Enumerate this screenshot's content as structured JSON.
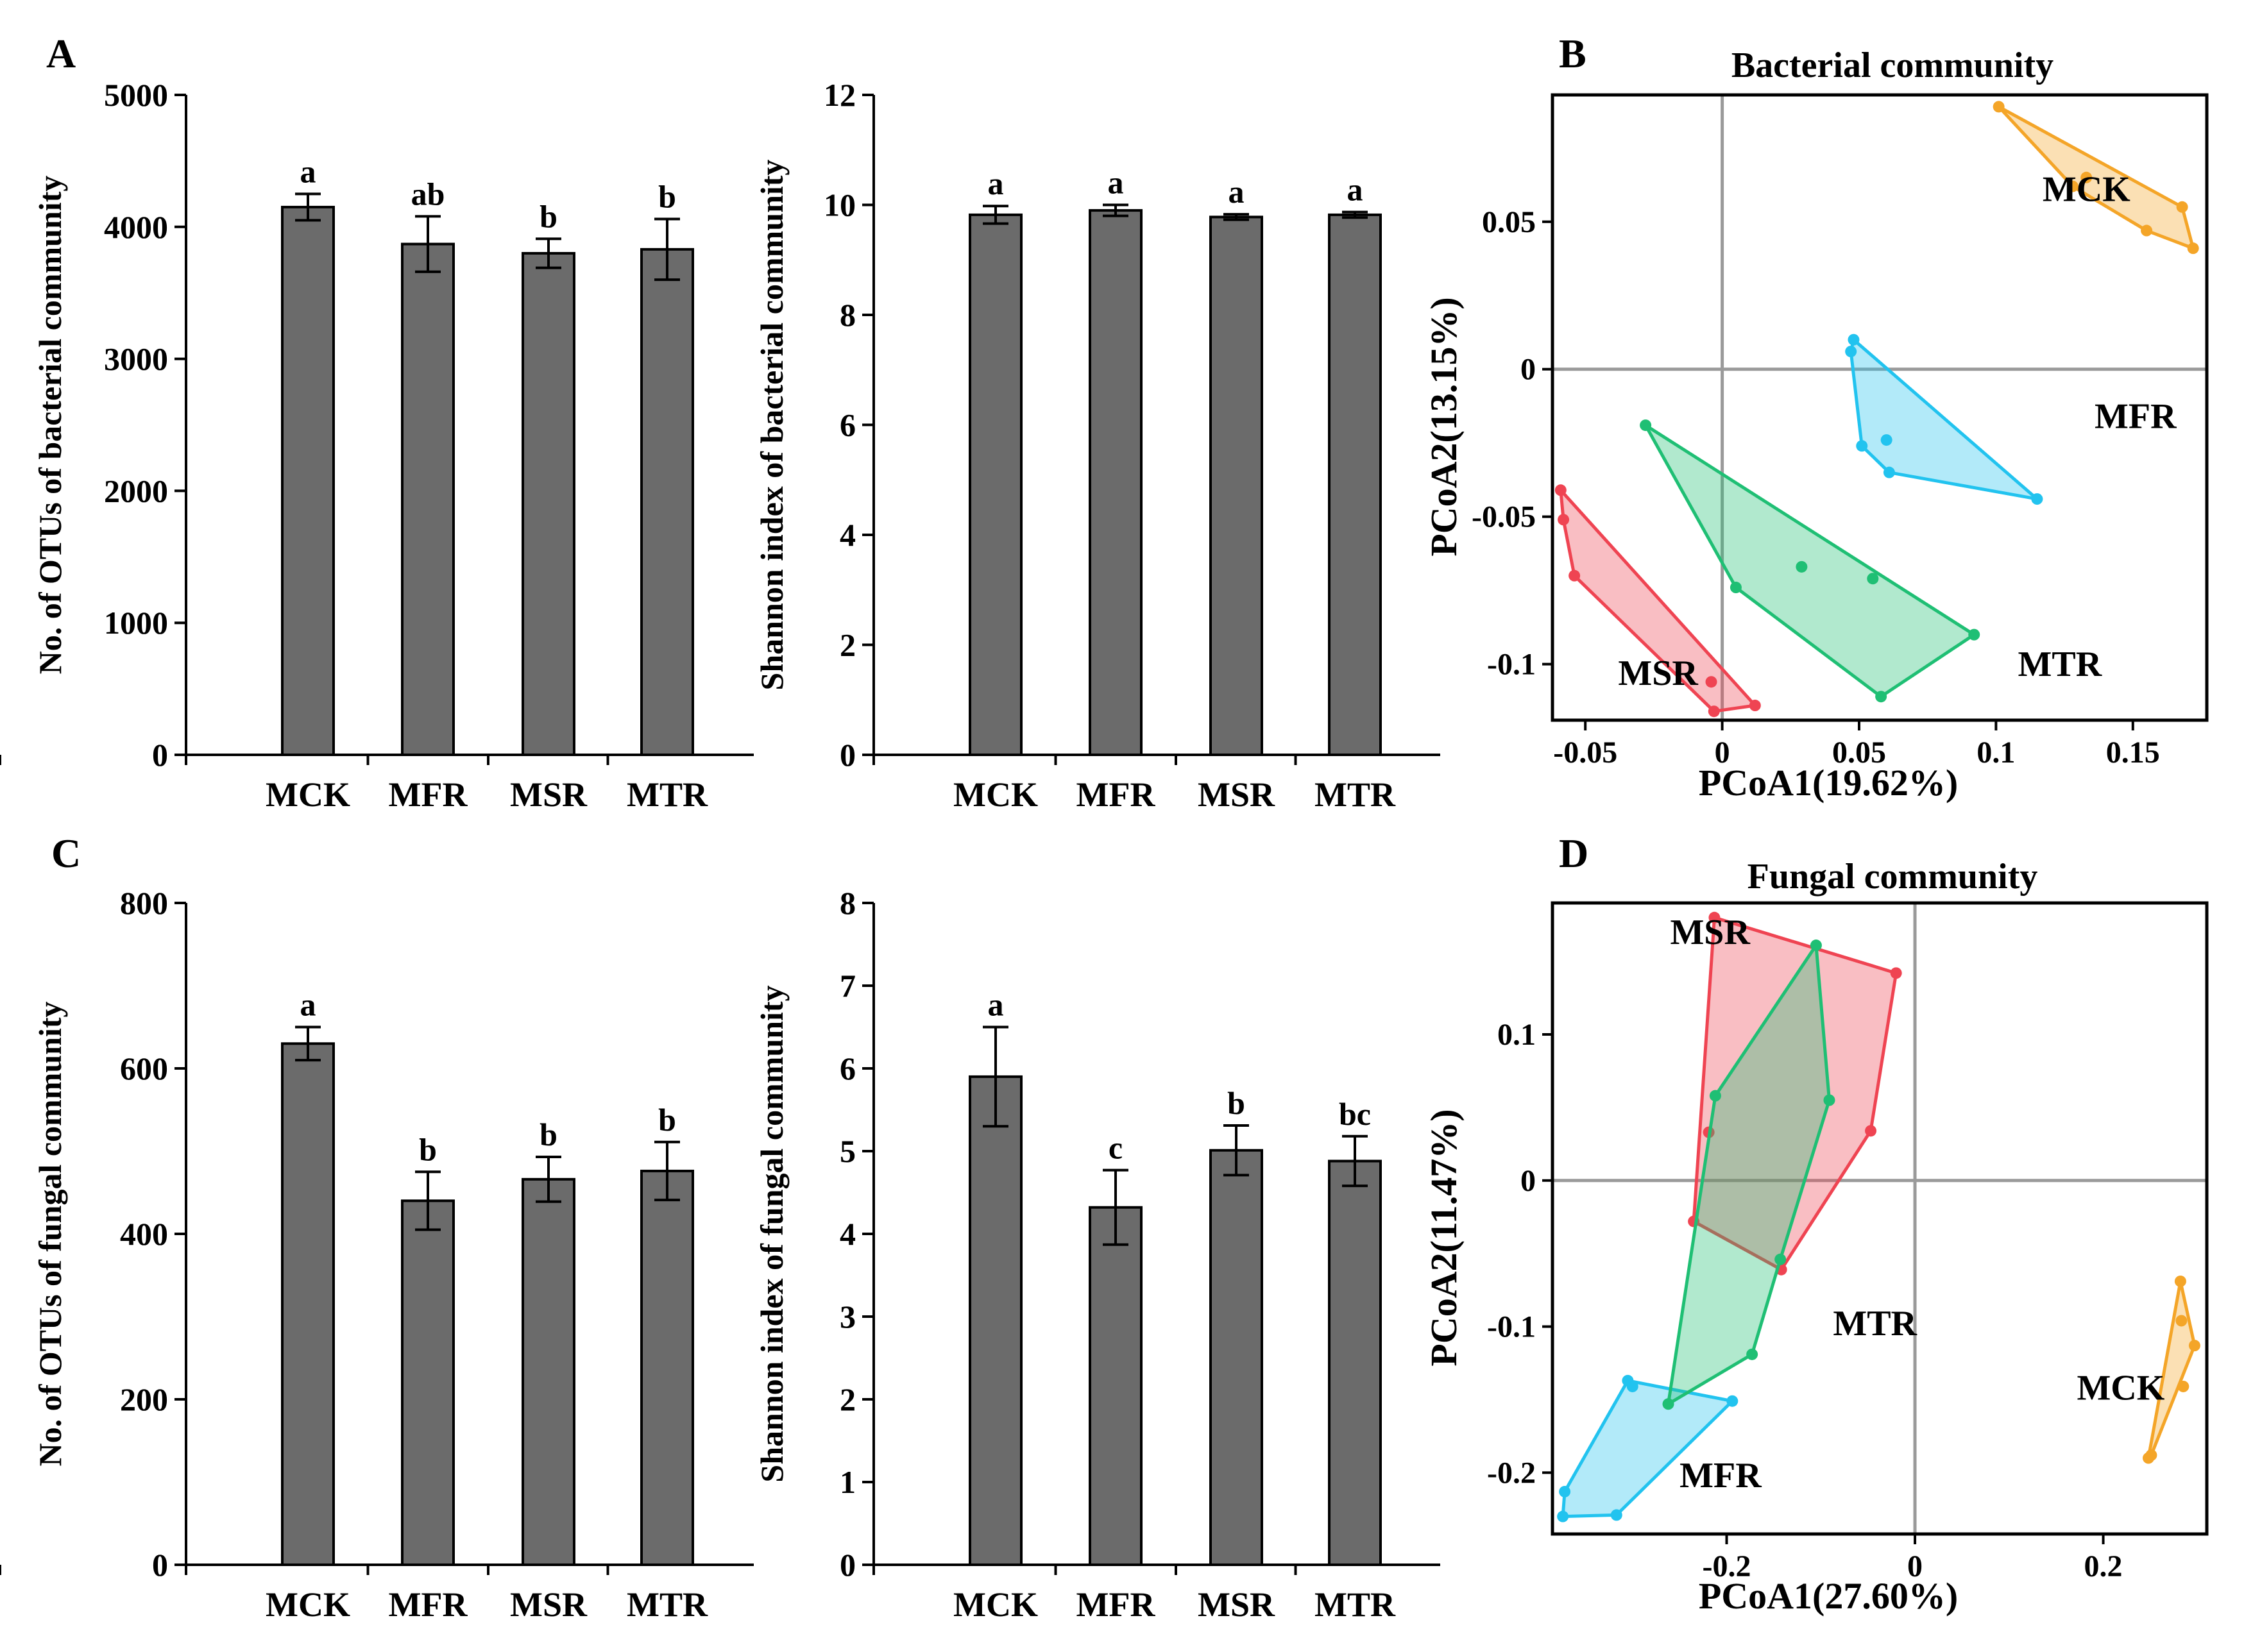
{
  "colors": {
    "bar": "#6b6b6b",
    "axis": "#000000",
    "zero_line": "#9a9a9a",
    "MCK": "#f4a528",
    "MFR": "#22c3ef",
    "MSR": "#ef4452",
    "MTR": "#1fbf74"
  },
  "chart_data": [
    {
      "id": "A1",
      "panel_label": "A",
      "type": "bar",
      "categories": [
        "MCK",
        "MFR",
        "MSR",
        "MTR"
      ],
      "values": [
        4150,
        3870,
        3800,
        3830
      ],
      "errors": [
        100,
        210,
        110,
        230
      ],
      "letters": [
        "a",
        "ab",
        "b",
        "b"
      ],
      "ylabel": "No. of OTUs of bacterial community",
      "ylim": [
        0,
        5000
      ],
      "yticks": [
        0,
        1000,
        2000,
        3000,
        4000,
        5000
      ],
      "ytick_labels": [
        "0",
        "1000",
        "2000",
        "3000",
        "4000",
        "5000"
      ]
    },
    {
      "id": "A2",
      "panel_label": "",
      "type": "bar",
      "categories": [
        "MCK",
        "MFR",
        "MSR",
        "MTR"
      ],
      "values": [
        9.82,
        9.9,
        9.78,
        9.82
      ],
      "errors": [
        0.16,
        0.1,
        0.05,
        0.05
      ],
      "letters": [
        "a",
        "a",
        "a",
        "a"
      ],
      "ylabel": "Shannon index of bacterial community",
      "ylim": [
        0,
        12
      ],
      "yticks": [
        0,
        2,
        4,
        6,
        8,
        10,
        12
      ],
      "ytick_labels": [
        "0",
        "2",
        "4",
        "6",
        "8",
        "10",
        "12"
      ]
    },
    {
      "id": "C1",
      "panel_label": "C",
      "type": "bar",
      "categories": [
        "MCK",
        "MFR",
        "MSR",
        "MTR"
      ],
      "values": [
        630,
        440,
        466,
        476
      ],
      "errors": [
        20,
        35,
        27,
        35
      ],
      "letters": [
        "a",
        "b",
        "b",
        "b"
      ],
      "ylabel": "No. of OTUs of fungal community",
      "ylim": [
        0,
        800
      ],
      "yticks": [
        0,
        200,
        400,
        600,
        800
      ],
      "ytick_labels": [
        "0",
        "200",
        "400",
        "600",
        "800"
      ]
    },
    {
      "id": "C2",
      "panel_label": "",
      "type": "bar",
      "categories": [
        "MCK",
        "MFR",
        "MSR",
        "MTR"
      ],
      "values": [
        5.9,
        4.32,
        5.01,
        4.88
      ],
      "errors": [
        0.6,
        0.45,
        0.3,
        0.3
      ],
      "letters": [
        "a",
        "c",
        "b",
        "bc"
      ],
      "ylabel": "Shannon index of fungal community",
      "ylim": [
        0,
        8
      ],
      "yticks": [
        0,
        1,
        2,
        3,
        4,
        5,
        6,
        7,
        8
      ],
      "ytick_labels": [
        "0",
        "1",
        "2",
        "3",
        "4",
        "5",
        "6",
        "7",
        "8"
      ]
    },
    {
      "id": "B",
      "panel_label": "B",
      "type": "scatter",
      "title": "Bacterial community",
      "xlabel": "PCoA1(19.62%)",
      "ylabel": "PCoA2(13.15%)",
      "xlim": [
        -0.062,
        0.177
      ],
      "ylim": [
        -0.119,
        0.093
      ],
      "xticks": [
        -0.05,
        0,
        0.05,
        0.1,
        0.15
      ],
      "xtick_labels": [
        "-0.05",
        "0",
        "0.05",
        "0.1",
        "0.15"
      ],
      "yticks": [
        -0.1,
        -0.05,
        0,
        0.05
      ],
      "ytick_labels": [
        "-0.1",
        "-0.05",
        "0",
        "0.05"
      ],
      "groups": [
        {
          "name": "MCK",
          "label_at": [
            0.117,
            0.057
          ],
          "hull": [
            [
              0.101,
              0.089
            ],
            [
              0.168,
              0.055
            ],
            [
              0.172,
              0.041
            ],
            [
              0.155,
              0.047
            ],
            [
              0.128,
              0.062
            ]
          ],
          "points": [
            [
              0.101,
              0.089
            ],
            [
              0.133,
              0.065
            ],
            [
              0.128,
              0.062
            ],
            [
              0.155,
              0.047
            ],
            [
              0.168,
              0.055
            ],
            [
              0.172,
              0.041
            ]
          ]
        },
        {
          "name": "MFR",
          "label_at": [
            0.136,
            -0.02
          ],
          "hull": [
            [
              0.048,
              0.01
            ],
            [
              0.115,
              -0.044
            ],
            [
              0.061,
              -0.035
            ],
            [
              0.051,
              -0.026
            ],
            [
              0.047,
              0.006
            ]
          ],
          "points": [
            [
              0.048,
              0.01
            ],
            [
              0.047,
              0.006
            ],
            [
              0.06,
              -0.024
            ],
            [
              0.051,
              -0.026
            ],
            [
              0.061,
              -0.035
            ],
            [
              0.115,
              -0.044
            ]
          ]
        },
        {
          "name": "MSR",
          "label_at": [
            -0.038,
            -0.107
          ],
          "hull": [
            [
              -0.059,
              -0.041
            ],
            [
              0.012,
              -0.114
            ],
            [
              -0.003,
              -0.116
            ],
            [
              -0.054,
              -0.07
            ],
            [
              -0.058,
              -0.051
            ]
          ],
          "points": [
            [
              -0.059,
              -0.041
            ],
            [
              -0.058,
              -0.051
            ],
            [
              -0.054,
              -0.07
            ],
            [
              -0.004,
              -0.106
            ],
            [
              0.012,
              -0.114
            ],
            [
              -0.003,
              -0.116
            ]
          ]
        },
        {
          "name": "MTR",
          "label_at": [
            0.108,
            -0.104
          ],
          "hull": [
            [
              -0.028,
              -0.019
            ],
            [
              0.092,
              -0.09
            ],
            [
              0.058,
              -0.111
            ],
            [
              0.005,
              -0.074
            ]
          ],
          "points": [
            [
              -0.028,
              -0.019
            ],
            [
              0.029,
              -0.067
            ],
            [
              0.055,
              -0.071
            ],
            [
              0.005,
              -0.074
            ],
            [
              0.092,
              -0.09
            ],
            [
              0.058,
              -0.111
            ]
          ]
        }
      ]
    },
    {
      "id": "D",
      "panel_label": "D",
      "type": "scatter",
      "title": "Fungal community",
      "xlabel": "PCoA1(27.60%)",
      "ylabel": "PCoA2(11.47%)",
      "xlim": [
        -0.385,
        0.31
      ],
      "ylim": [
        -0.242,
        0.19
      ],
      "xticks": [
        -0.2,
        0,
        0.2
      ],
      "xtick_labels": [
        "-0.2",
        "0",
        "0.2"
      ],
      "yticks": [
        -0.2,
        -0.1,
        0,
        0.1
      ],
      "ytick_labels": [
        "-0.2",
        "-0.1",
        "0",
        "0.1"
      ],
      "groups": [
        {
          "name": "MCK",
          "label_at": [
            0.172,
            -0.15
          ],
          "hull": [
            [
              0.282,
              -0.069
            ],
            [
              0.297,
              -0.113
            ],
            [
              0.251,
              -0.188
            ],
            [
              0.248,
              -0.19
            ]
          ],
          "points": [
            [
              0.282,
              -0.069
            ],
            [
              0.283,
              -0.096
            ],
            [
              0.297,
              -0.113
            ],
            [
              0.285,
              -0.141
            ],
            [
              0.251,
              -0.188
            ],
            [
              0.248,
              -0.19
            ]
          ]
        },
        {
          "name": "MFR",
          "label_at": [
            -0.25,
            -0.21
          ],
          "hull": [
            [
              -0.305,
              -0.137
            ],
            [
              -0.194,
              -0.151
            ],
            [
              -0.317,
              -0.229
            ],
            [
              -0.374,
              -0.23
            ],
            [
              -0.372,
              -0.213
            ]
          ],
          "points": [
            [
              -0.305,
              -0.137
            ],
            [
              -0.3,
              -0.141
            ],
            [
              -0.194,
              -0.151
            ],
            [
              -0.372,
              -0.213
            ],
            [
              -0.374,
              -0.23
            ],
            [
              -0.317,
              -0.229
            ]
          ]
        },
        {
          "name": "MSR",
          "label_at": [
            -0.26,
            0.162
          ],
          "hull": [
            [
              -0.213,
              0.18
            ],
            [
              -0.02,
              0.142
            ],
            [
              -0.047,
              0.034
            ],
            [
              -0.142,
              -0.061
            ],
            [
              -0.235,
              -0.028
            ]
          ],
          "points": [
            [
              -0.213,
              0.18
            ],
            [
              -0.02,
              0.142
            ],
            [
              -0.047,
              0.034
            ],
            [
              -0.219,
              0.033
            ],
            [
              -0.142,
              -0.061
            ],
            [
              -0.235,
              -0.028
            ]
          ]
        },
        {
          "name": "MTR",
          "label_at": [
            -0.087,
            -0.106
          ],
          "hull": [
            [
              -0.105,
              0.161
            ],
            [
              -0.091,
              0.055
            ],
            [
              -0.143,
              -0.054
            ],
            [
              -0.173,
              -0.119
            ],
            [
              -0.262,
              -0.153
            ],
            [
              -0.212,
              0.058
            ]
          ],
          "points": [
            [
              -0.105,
              0.161
            ],
            [
              -0.212,
              0.058
            ],
            [
              -0.091,
              0.055
            ],
            [
              -0.143,
              -0.054
            ],
            [
              -0.173,
              -0.119
            ],
            [
              -0.262,
              -0.153
            ]
          ]
        }
      ]
    }
  ]
}
